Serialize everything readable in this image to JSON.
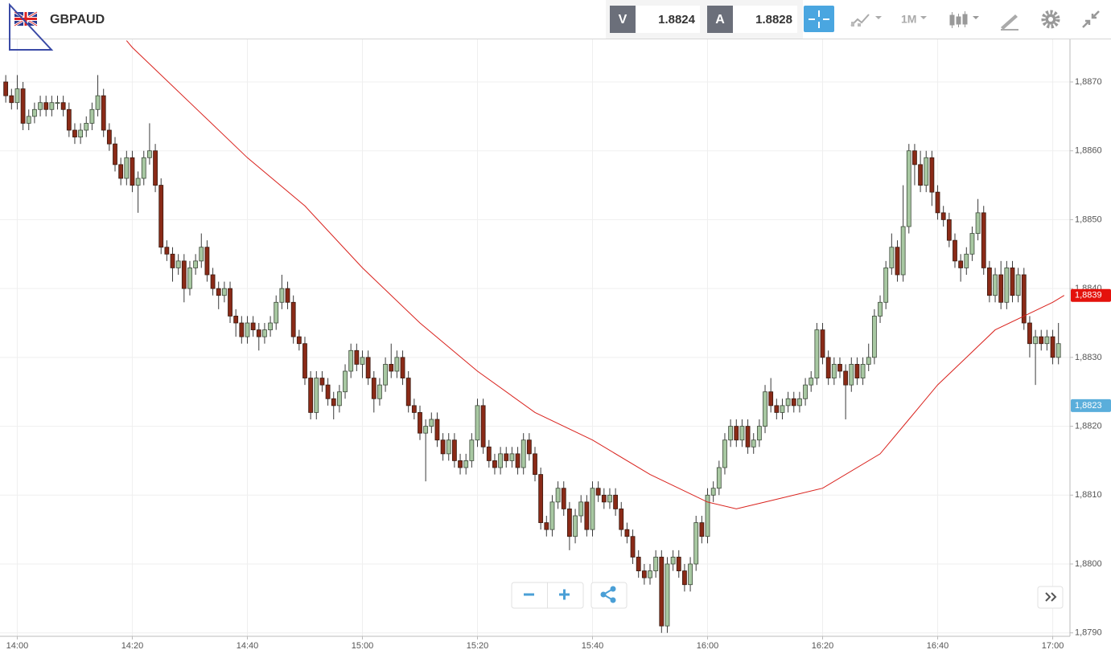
{
  "chart_data": {
    "type": "candlestick",
    "title": "GBPAUD",
    "bid_label": "V",
    "bid": 1.8824,
    "ask_label": "A",
    "ask": 1.8828,
    "timeframe": "1M",
    "up_color": "#a8c8a2",
    "down_color": "#8a2a17",
    "grid": true,
    "xlim": [
      "13:57",
      "17:03"
    ],
    "xticks": [
      "14:00",
      "14:20",
      "14:40",
      "15:00",
      "15:20",
      "15:40",
      "16:00",
      "16:20",
      "16:40",
      "17:00"
    ],
    "ylim": [
      1.87895,
      1.88763
    ],
    "yticks": [
      {
        "value": 1.879,
        "label": "1,8790"
      },
      {
        "value": 1.88,
        "label": "1,8800"
      },
      {
        "value": 1.881,
        "label": "1,8810"
      },
      {
        "value": 1.882,
        "label": "1,8820"
      },
      {
        "value": 1.883,
        "label": "1,8830"
      },
      {
        "value": 1.884,
        "label": "1,8840"
      },
      {
        "value": 1.885,
        "label": "1,8850"
      },
      {
        "value": 1.886,
        "label": "1,8860"
      },
      {
        "value": 1.887,
        "label": "1,8870"
      }
    ],
    "price_labels": [
      {
        "value": 1.8839,
        "label": "1,8839",
        "color": "#e4120c"
      },
      {
        "value": 1.8823,
        "label": "1,8823",
        "color": "#5aaedb"
      }
    ],
    "x": [
      "13:58",
      "13:59",
      "14:00",
      "14:01",
      "14:02",
      "14:03",
      "14:04",
      "14:05",
      "14:06",
      "14:07",
      "14:08",
      "14:09",
      "14:10",
      "14:11",
      "14:12",
      "14:13",
      "14:14",
      "14:15",
      "14:16",
      "14:17",
      "14:18",
      "14:19",
      "14:20",
      "14:21",
      "14:22",
      "14:23",
      "14:24",
      "14:25",
      "14:26",
      "14:27",
      "14:28",
      "14:29",
      "14:30",
      "14:31",
      "14:32",
      "14:33",
      "14:34",
      "14:35",
      "14:36",
      "14:37",
      "14:38",
      "14:39",
      "14:40",
      "14:41",
      "14:42",
      "14:43",
      "14:44",
      "14:45",
      "14:46",
      "14:47",
      "14:48",
      "14:49",
      "14:50",
      "14:51",
      "14:52",
      "14:53",
      "14:54",
      "14:55",
      "14:56",
      "14:57",
      "14:58",
      "14:59",
      "15:00",
      "15:01",
      "15:02",
      "15:03",
      "15:04",
      "15:05",
      "15:06",
      "15:07",
      "15:08",
      "15:09",
      "15:10",
      "15:11",
      "15:12",
      "15:13",
      "15:14",
      "15:15",
      "15:16",
      "15:17",
      "15:18",
      "15:19",
      "15:20",
      "15:21",
      "15:22",
      "15:23",
      "15:24",
      "15:25",
      "15:26",
      "15:27",
      "15:28",
      "15:29",
      "15:30",
      "15:31",
      "15:32",
      "15:33",
      "15:34",
      "15:35",
      "15:36",
      "15:37",
      "15:38",
      "15:39",
      "15:40",
      "15:41",
      "15:42",
      "15:43",
      "15:44",
      "15:45",
      "15:46",
      "15:47",
      "15:48",
      "15:49",
      "15:50",
      "15:51",
      "15:52",
      "15:53",
      "15:54",
      "15:55",
      "15:56",
      "15:57",
      "15:58",
      "15:59",
      "16:00",
      "16:01",
      "16:02",
      "16:03",
      "16:04",
      "16:05",
      "16:06",
      "16:07",
      "16:08",
      "16:09",
      "16:10",
      "16:11",
      "16:12",
      "16:13",
      "16:14",
      "16:15",
      "16:16",
      "16:17",
      "16:18",
      "16:19",
      "16:20",
      "16:21",
      "16:22",
      "16:23",
      "16:24",
      "16:25",
      "16:26",
      "16:27",
      "16:28",
      "16:29",
      "16:30",
      "16:31",
      "16:32",
      "16:33",
      "16:34",
      "16:35",
      "16:36",
      "16:37",
      "16:38",
      "16:39",
      "16:40",
      "16:41",
      "16:42",
      "16:43",
      "16:44",
      "16:45",
      "16:46",
      "16:47",
      "16:48",
      "16:49",
      "16:50",
      "16:51",
      "16:52",
      "16:53",
      "16:54",
      "16:55",
      "16:56",
      "16:57",
      "16:58",
      "16:59",
      "17:00",
      "17:01"
    ],
    "open": [
      1.887,
      1.8868,
      1.8867,
      1.8869,
      1.8864,
      1.8865,
      1.8866,
      1.8867,
      1.8866,
      1.8867,
      1.8867,
      1.8866,
      1.8863,
      1.8862,
      1.8863,
      1.8864,
      1.8866,
      1.8868,
      1.8863,
      1.8861,
      1.8858,
      1.8856,
      1.8859,
      1.8855,
      1.8856,
      1.8859,
      1.886,
      1.8855,
      1.8846,
      1.8845,
      1.8843,
      1.8844,
      1.884,
      1.8843,
      1.8844,
      1.8846,
      1.8842,
      1.884,
      1.8839,
      1.884,
      1.8836,
      1.8835,
      1.8833,
      1.8835,
      1.8834,
      1.8833,
      1.8834,
      1.8835,
      1.8838,
      1.884,
      1.8838,
      1.8833,
      1.8832,
      1.8827,
      1.8822,
      1.8827,
      1.8826,
      1.8824,
      1.8823,
      1.8825,
      1.8828,
      1.8831,
      1.8829,
      1.883,
      1.8827,
      1.8824,
      1.8826,
      1.8829,
      1.8828,
      1.883,
      1.8827,
      1.8823,
      1.8822,
      1.8819,
      1.882,
      1.8821,
      1.8818,
      1.8816,
      1.8818,
      1.8815,
      1.8814,
      1.8815,
      1.8818,
      1.8823,
      1.8817,
      1.8815,
      1.8814,
      1.8816,
      1.8815,
      1.8816,
      1.8814,
      1.8818,
      1.8816,
      1.8813,
      1.8806,
      1.8805,
      1.8809,
      1.8811,
      1.8808,
      1.8804,
      1.8807,
      1.8809,
      1.8805,
      1.8811,
      1.881,
      1.8809,
      1.881,
      1.8808,
      1.8805,
      1.8804,
      1.8801,
      1.8799,
      1.8798,
      1.8799,
      1.8801,
      1.8791,
      1.88,
      1.8801,
      1.8799,
      1.8797,
      1.88,
      1.8806,
      1.8804,
      1.881,
      1.8811,
      1.8814,
      1.8818,
      1.882,
      1.8818,
      1.882,
      1.8817,
      1.8818,
      1.882,
      1.8825,
      1.8823,
      1.8822,
      1.8823,
      1.8824,
      1.8823,
      1.8824,
      1.8826,
      1.8827,
      1.8834,
      1.883,
      1.8827,
      1.8829,
      1.8828,
      1.8826,
      1.8829,
      1.8827,
      1.8829,
      1.883,
      1.8836,
      1.8838,
      1.8843,
      1.8846,
      1.8842,
      1.8849,
      1.886,
      1.8858,
      1.8855,
      1.8859,
      1.8854,
      1.8851,
      1.885,
      1.8847,
      1.8844,
      1.8843,
      1.8845,
      1.8848,
      1.8851,
      1.8843,
      1.8839,
      1.8842,
      1.8838,
      1.8843,
      1.8839,
      1.8842,
      1.8835,
      1.8832,
      1.8833,
      1.8832,
      1.8833,
      1.883
    ],
    "high": [
      1.8871,
      1.8869,
      1.8871,
      1.887,
      1.8866,
      1.8867,
      1.8868,
      1.8868,
      1.8868,
      1.8868,
      1.8868,
      1.8867,
      1.8864,
      1.8864,
      1.8865,
      1.8867,
      1.8871,
      1.8869,
      1.8864,
      1.8862,
      1.8859,
      1.886,
      1.886,
      1.8857,
      1.886,
      1.8864,
      1.8861,
      1.8856,
      1.8847,
      1.8846,
      1.8845,
      1.8845,
      1.8844,
      1.8845,
      1.8848,
      1.8847,
      1.8843,
      1.8841,
      1.8841,
      1.8841,
      1.8837,
      1.8836,
      1.8836,
      1.8836,
      1.8835,
      1.8835,
      1.8836,
      1.8839,
      1.8842,
      1.8841,
      1.8839,
      1.8834,
      1.8833,
      1.8828,
      1.8828,
      1.8828,
      1.8827,
      1.8825,
      1.8826,
      1.8829,
      1.8832,
      1.8832,
      1.8831,
      1.8831,
      1.8828,
      1.8827,
      1.883,
      1.8832,
      1.8831,
      1.8831,
      1.8828,
      1.8824,
      1.8823,
      1.8821,
      1.8822,
      1.8822,
      1.8819,
      1.8819,
      1.8819,
      1.8816,
      1.8816,
      1.8819,
      1.8824,
      1.8824,
      1.8818,
      1.8816,
      1.8817,
      1.8817,
      1.8817,
      1.8817,
      1.8819,
      1.8819,
      1.8817,
      1.8814,
      1.8807,
      1.881,
      1.8812,
      1.8812,
      1.8809,
      1.8808,
      1.881,
      1.881,
      1.8812,
      1.8812,
      1.8811,
      1.8811,
      1.8811,
      1.8809,
      1.8806,
      1.8805,
      1.8802,
      1.88,
      1.88,
      1.8802,
      1.8802,
      1.8801,
      1.8802,
      1.8802,
      1.88,
      1.8801,
      1.8807,
      1.8807,
      1.8811,
      1.8812,
      1.8815,
      1.8819,
      1.8821,
      1.8821,
      1.8821,
      1.8821,
      1.8819,
      1.8821,
      1.8826,
      1.8827,
      1.8824,
      1.8824,
      1.8825,
      1.8825,
      1.8825,
      1.8827,
      1.8828,
      1.8835,
      1.8835,
      1.8831,
      1.883,
      1.883,
      1.8829,
      1.883,
      1.883,
      1.883,
      1.8832,
      1.8837,
      1.8839,
      1.8844,
      1.8848,
      1.8847,
      1.8855,
      1.8861,
      1.8861,
      1.886,
      1.886,
      1.886,
      1.8855,
      1.8852,
      1.8851,
      1.8848,
      1.8845,
      1.8846,
      1.8849,
      1.8853,
      1.8852,
      1.8844,
      1.8843,
      1.8844,
      1.8844,
      1.8844,
      1.8843,
      1.8843,
      1.8836,
      1.8834,
      1.8834,
      1.8834,
      1.8834,
      1.8835
    ],
    "low": [
      1.8867,
      1.8866,
      1.8866,
      1.8863,
      1.8863,
      1.8864,
      1.8865,
      1.8865,
      1.8865,
      1.8866,
      1.8865,
      1.8862,
      1.8861,
      1.8861,
      1.8862,
      1.8863,
      1.8865,
      1.8862,
      1.886,
      1.8857,
      1.8855,
      1.8855,
      1.8854,
      1.8851,
      1.8855,
      1.8858,
      1.8854,
      1.8845,
      1.8844,
      1.8841,
      1.8842,
      1.8838,
      1.8839,
      1.8842,
      1.8843,
      1.8841,
      1.8839,
      1.8837,
      1.8838,
      1.8835,
      1.8833,
      1.8832,
      1.8832,
      1.8833,
      1.8831,
      1.8832,
      1.8833,
      1.8834,
      1.8837,
      1.8837,
      1.8832,
      1.8831,
      1.8826,
      1.8821,
      1.8821,
      1.8825,
      1.8823,
      1.8821,
      1.8822,
      1.8824,
      1.8827,
      1.8828,
      1.8827,
      1.8826,
      1.8822,
      1.8823,
      1.8825,
      1.8827,
      1.8827,
      1.8826,
      1.8822,
      1.8821,
      1.8818,
      1.8812,
      1.8819,
      1.8817,
      1.8815,
      1.8815,
      1.8814,
      1.8813,
      1.8813,
      1.8814,
      1.8817,
      1.8816,
      1.8814,
      1.8813,
      1.8813,
      1.8814,
      1.8814,
      1.8813,
      1.8813,
      1.8815,
      1.8812,
      1.8805,
      1.8804,
      1.8804,
      1.8808,
      1.8807,
      1.8802,
      1.8803,
      1.8806,
      1.8804,
      1.8804,
      1.8809,
      1.8808,
      1.8808,
      1.8807,
      1.8804,
      1.8803,
      1.88,
      1.8798,
      1.8797,
      1.8797,
      1.8798,
      1.879,
      1.879,
      1.8799,
      1.8798,
      1.8796,
      1.8796,
      1.8799,
      1.8803,
      1.8803,
      1.8809,
      1.881,
      1.8813,
      1.8817,
      1.8817,
      1.8817,
      1.8816,
      1.8816,
      1.8817,
      1.8819,
      1.8822,
      1.8821,
      1.8821,
      1.8822,
      1.8822,
      1.8822,
      1.8823,
      1.8825,
      1.8826,
      1.8829,
      1.8826,
      1.8826,
      1.8827,
      1.8821,
      1.8825,
      1.8826,
      1.8826,
      1.8828,
      1.8829,
      1.8835,
      1.8837,
      1.8842,
      1.8841,
      1.8841,
      1.8848,
      1.8855,
      1.8854,
      1.8854,
      1.8852,
      1.885,
      1.8849,
      1.8846,
      1.8843,
      1.8841,
      1.8842,
      1.8844,
      1.8847,
      1.8842,
      1.8838,
      1.8838,
      1.8837,
      1.8837,
      1.8838,
      1.8838,
      1.8834,
      1.883,
      1.8826,
      1.8831,
      1.8831,
      1.8829,
      1.8829
    ],
    "close": [
      1.8868,
      1.8867,
      1.8869,
      1.8864,
      1.8865,
      1.8866,
      1.8867,
      1.8866,
      1.8867,
      1.8867,
      1.8866,
      1.8863,
      1.8862,
      1.8863,
      1.8864,
      1.8866,
      1.8868,
      1.8863,
      1.8861,
      1.8858,
      1.8856,
      1.8859,
      1.8855,
      1.8856,
      1.8859,
      1.886,
      1.8855,
      1.8846,
      1.8845,
      1.8843,
      1.8844,
      1.884,
      1.8843,
      1.8844,
      1.8846,
      1.8842,
      1.884,
      1.8839,
      1.884,
      1.8836,
      1.8835,
      1.8833,
      1.8835,
      1.8834,
      1.8833,
      1.8834,
      1.8835,
      1.8838,
      1.884,
      1.8838,
      1.8833,
      1.8832,
      1.8827,
      1.8822,
      1.8827,
      1.8826,
      1.8824,
      1.8823,
      1.8825,
      1.8828,
      1.8831,
      1.8829,
      1.883,
      1.8827,
      1.8824,
      1.8826,
      1.8829,
      1.8828,
      1.883,
      1.8827,
      1.8823,
      1.8822,
      1.8819,
      1.882,
      1.8821,
      1.8818,
      1.8816,
      1.8818,
      1.8815,
      1.8814,
      1.8815,
      1.8818,
      1.8823,
      1.8817,
      1.8815,
      1.8814,
      1.8816,
      1.8815,
      1.8816,
      1.8814,
      1.8818,
      1.8816,
      1.8813,
      1.8806,
      1.8805,
      1.8809,
      1.8811,
      1.8808,
      1.8804,
      1.8807,
      1.8809,
      1.8805,
      1.8811,
      1.881,
      1.8809,
      1.881,
      1.8808,
      1.8805,
      1.8804,
      1.8801,
      1.8799,
      1.8798,
      1.8799,
      1.8801,
      1.8791,
      1.88,
      1.8801,
      1.8799,
      1.8797,
      1.88,
      1.8806,
      1.8804,
      1.881,
      1.8811,
      1.8814,
      1.8818,
      1.882,
      1.8818,
      1.882,
      1.8817,
      1.8818,
      1.882,
      1.8825,
      1.8823,
      1.8822,
      1.8823,
      1.8824,
      1.8823,
      1.8824,
      1.8826,
      1.8827,
      1.8834,
      1.883,
      1.8827,
      1.8829,
      1.8828,
      1.8826,
      1.8829,
      1.8827,
      1.8829,
      1.883,
      1.8836,
      1.8838,
      1.8843,
      1.8846,
      1.8842,
      1.8849,
      1.886,
      1.8858,
      1.8855,
      1.8859,
      1.8854,
      1.8851,
      1.885,
      1.8847,
      1.8844,
      1.8843,
      1.8845,
      1.8848,
      1.8851,
      1.8843,
      1.8839,
      1.8842,
      1.8838,
      1.8843,
      1.8839,
      1.8842,
      1.8835,
      1.8832,
      1.8833,
      1.8832,
      1.8833,
      1.883,
      1.8832
    ],
    "ma": {
      "color": "#d9211c",
      "x": [
        "14:19",
        "14:20",
        "14:30",
        "14:40",
        "14:50",
        "15:00",
        "15:10",
        "15:20",
        "15:30",
        "15:40",
        "15:50",
        "16:00",
        "16:05",
        "16:10",
        "16:20",
        "16:30",
        "16:35",
        "16:40",
        "16:45",
        "16:50",
        "16:55",
        "17:00",
        "17:02"
      ],
      "values": [
        1.8876,
        1.8875,
        1.8867,
        1.8859,
        1.8852,
        1.8843,
        1.8835,
        1.8828,
        1.8822,
        1.8818,
        1.8813,
        1.8809,
        1.8808,
        1.8809,
        1.8811,
        1.8816,
        1.8821,
        1.8826,
        1.883,
        1.8834,
        1.8836,
        1.8838,
        1.8839
      ]
    }
  }
}
